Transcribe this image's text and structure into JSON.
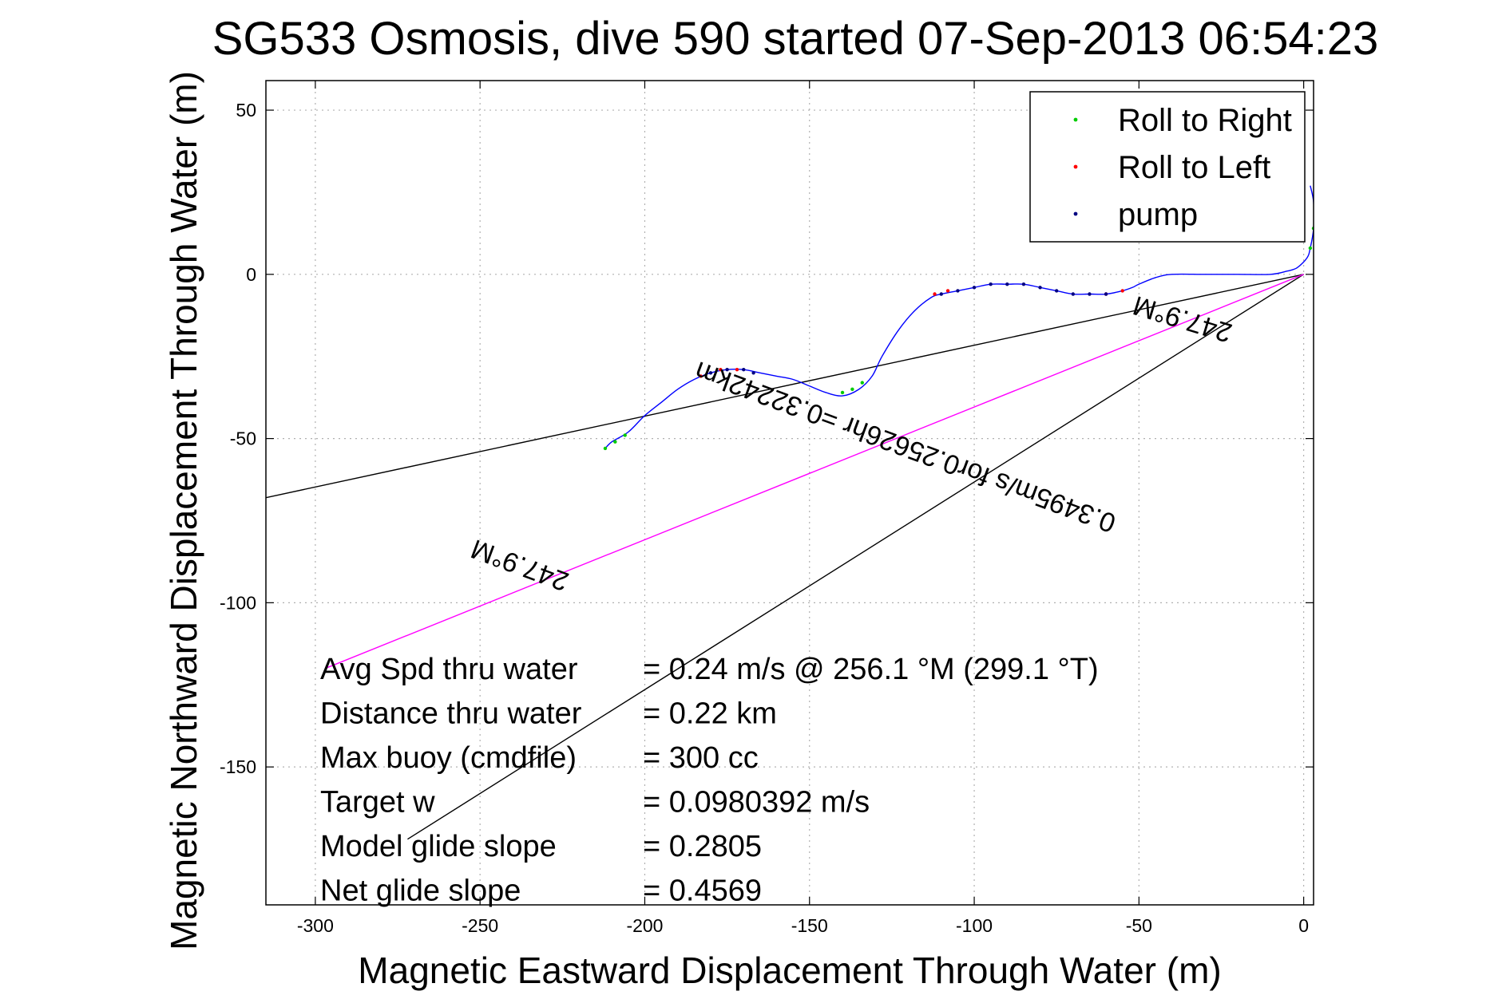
{
  "chart_data": {
    "type": "line",
    "title": "SG533 Osmosis, dive 590 started 07-Sep-2013 06:54:23",
    "xlabel": "Magnetic Eastward Displacement Through Water (m)",
    "ylabel": "Magnetic Northward Displacement Through Water (m)",
    "xlim": [
      -315,
      3
    ],
    "ylim": [
      -192,
      59
    ],
    "xticks": [
      -300,
      -250,
      -200,
      -150,
      -100,
      -50,
      0
    ],
    "yticks": [
      50,
      0,
      -50,
      -100,
      -150
    ],
    "xtick_labels": [
      "-300",
      "-250",
      "-200",
      "-150",
      "-100",
      "-50",
      "0"
    ],
    "ytick_labels": [
      "50",
      "0",
      "-50",
      "-100",
      "-150"
    ],
    "grid": true,
    "legend": {
      "position": "top-right",
      "entries": [
        {
          "label": "Roll to Right",
          "color": "#00cc00",
          "marker": "dot"
        },
        {
          "label": "Roll to Left",
          "color": "#ff0000",
          "marker": "dot"
        },
        {
          "label": "pump",
          "color": "#000080",
          "marker": "dot"
        }
      ]
    },
    "track": {
      "color": "#0000ff",
      "x": [
        2,
        3,
        3,
        2,
        1,
        -2,
        -5,
        -10,
        -20,
        -30,
        -40,
        -45,
        -50,
        -52,
        -55,
        -60,
        -65,
        -70,
        -75,
        -80,
        -85,
        -90,
        -95,
        -100,
        -105,
        -110,
        -113,
        -118,
        -123,
        -128,
        -131,
        -135,
        -140,
        -145,
        -150,
        -155,
        -160,
        -165,
        -170,
        -175,
        -180,
        -185,
        -190,
        -195,
        -200,
        -205,
        -210,
        -212
      ],
      "y": [
        27,
        22,
        14,
        8,
        5,
        2,
        1,
        0,
        0,
        0,
        0,
        -1,
        -3,
        -4,
        -5,
        -6,
        -6,
        -6,
        -5,
        -4,
        -3,
        -3,
        -3,
        -4,
        -5,
        -6,
        -7,
        -11,
        -17,
        -25,
        -31,
        -35,
        -37,
        -36,
        -34,
        -32,
        -31,
        -30,
        -29,
        -29,
        -30,
        -32,
        -35,
        -39,
        -43,
        -48,
        -51,
        -53
      ]
    },
    "roll_right_points": {
      "color": "#00cc00",
      "x": [
        -212,
        -209,
        -206,
        -140,
        -137,
        -134,
        2,
        3
      ],
      "y": [
        -53,
        -51,
        -49,
        -36,
        -35,
        -33,
        8,
        14
      ]
    },
    "roll_left_points": {
      "color": "#ff0000",
      "x": [
        -183,
        -177,
        -172,
        -112,
        -108,
        -60,
        -55
      ],
      "y": [
        -31,
        -29,
        -29,
        -6,
        -5,
        -6,
        -5
      ]
    },
    "pump_points": {
      "color": "#000080",
      "x": [
        -180,
        -175,
        -170,
        -167,
        -110,
        -105,
        -100,
        -95,
        -90,
        -85,
        -80,
        -75,
        -70,
        -65,
        -60
      ],
      "y": [
        -30,
        -29,
        -29,
        -30,
        -6,
        -5,
        -4,
        -3,
        -3,
        -3,
        -4,
        -5,
        -6,
        -6,
        -6
      ]
    },
    "lines": [
      {
        "name": "",
        "color": "#000000",
        "x": [
          0,
          -315
        ],
        "y": [
          0,
          -68
        ]
      },
      {
        "name": "",
        "color": "#000000",
        "x": [
          0,
          -272
        ],
        "y": [
          0,
          -172
        ]
      },
      {
        "name": "",
        "color": "#ff00ff",
        "x": [
          0,
          -297
        ],
        "y": [
          0,
          -120
        ]
      }
    ],
    "annotations": [
      {
        "text": "247.9°M",
        "x": -36,
        "y": -11,
        "rotation_deg": 196.8
      },
      {
        "text": "0.3495m/s for0.25626hr =0.32242km",
        "x": -120,
        "y": -50,
        "rotation_deg": 200.3
      },
      {
        "text": "247.9°M",
        "x": -237,
        "y": -86,
        "rotation_deg": 200.3
      }
    ],
    "stats": [
      {
        "label": "Avg Spd thru water",
        "value": "=  0.24 m/s @ 256.1 °M (299.1 °T)"
      },
      {
        "label": "Distance thru water",
        "value": "=  0.22 km"
      },
      {
        "label": "Max buoy (cmdfile)",
        "value": "= 300 cc"
      },
      {
        "label": "Target w",
        "value": "= 0.0980392 m/s"
      },
      {
        "label": "Model glide slope",
        "value": "= 0.2805"
      },
      {
        "label": "Net glide slope",
        "value": "= 0.4569"
      }
    ]
  }
}
